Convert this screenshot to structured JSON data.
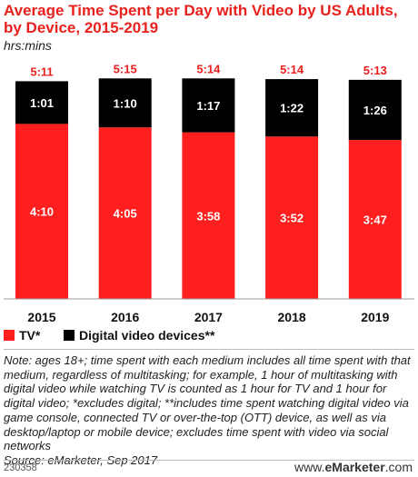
{
  "header": {
    "title": "Average Time Spent per Day with Video by US Adults, by Device, 2015-2019",
    "subtitle": "hrs:mins"
  },
  "chart_data": {
    "type": "bar",
    "stacked": true,
    "categories": [
      "2015",
      "2016",
      "2017",
      "2018",
      "2019"
    ],
    "series": [
      {
        "name": "TV*",
        "color": "#ff1f1f",
        "values": [
          250,
          245,
          238,
          232,
          227
        ],
        "labels": [
          "4:10",
          "4:05",
          "3:58",
          "3:52",
          "3:47"
        ]
      },
      {
        "name": "Digital video devices**",
        "color": "#000000",
        "values": [
          61,
          70,
          77,
          82,
          86
        ],
        "labels": [
          "1:01",
          "1:10",
          "1:17",
          "1:22",
          "1:26"
        ]
      }
    ],
    "totals": [
      311,
      315,
      314,
      314,
      313
    ],
    "total_labels": [
      "5:11",
      "5:15",
      "5:14",
      "5:14",
      "5:13"
    ],
    "total_label_color": "#e8211d",
    "ylim": [
      0,
      318
    ],
    "grid": false,
    "legend_position": "bottom-left"
  },
  "legend": {
    "items": [
      {
        "label": "TV*",
        "color": "#ff1f1f"
      },
      {
        "label": "Digital video devices**",
        "color": "#000000"
      }
    ]
  },
  "note": {
    "text": "Note: ages 18+; time spent with each medium includes all time spent with that medium, regardless of multitasking; for example, 1 hour of multitasking with digital video while watching TV is counted as 1 hour for TV and 1 hour for digital video; *excludes digital; **includes time spent watching digital video via game console, connected TV or over-the-top (OTT) device, as well as via desktop/laptop or mobile device; excludes time spent with video via social networks",
    "source": "Source: eMarketer, Sep 2017"
  },
  "footer": {
    "chart_id": "230358",
    "brand_prefix": "www.",
    "brand_name": "eMarketer",
    "brand_suffix": ".com"
  }
}
